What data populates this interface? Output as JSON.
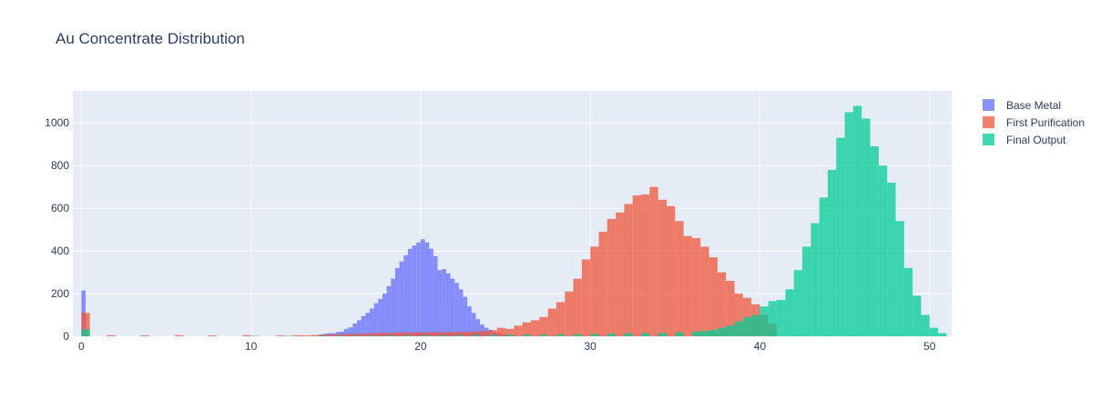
{
  "chart_data": {
    "type": "bar",
    "title": "Au Concentrate Distribution",
    "xlabel": "",
    "ylabel": "",
    "xlim": [
      -0.5,
      51.3
    ],
    "ylim": [
      0,
      1150
    ],
    "x_ticks": [
      0,
      10,
      20,
      30,
      40,
      50
    ],
    "y_ticks": [
      0,
      200,
      400,
      600,
      800,
      1000
    ],
    "grid": true,
    "legend_position": "top-right",
    "barmode": "overlay",
    "series": [
      {
        "name": "Base Metal",
        "color": "#636efa",
        "opacity": 0.75,
        "bin_width": 0.25,
        "x": [
          0,
          14,
          14.25,
          14.5,
          14.75,
          15,
          15.25,
          15.5,
          15.75,
          16,
          16.25,
          16.5,
          16.75,
          17,
          17.25,
          17.5,
          17.75,
          18,
          18.25,
          18.5,
          18.75,
          19,
          19.25,
          19.5,
          19.75,
          20,
          20.25,
          20.5,
          20.75,
          21,
          21.25,
          21.5,
          21.75,
          22,
          22.25,
          22.5,
          22.75,
          23,
          23.25,
          23.5,
          23.75,
          24,
          24.25,
          24.5,
          24.75,
          25,
          25.25,
          25.5
        ],
        "y": [
          215,
          8,
          12,
          15,
          14,
          20,
          22,
          35,
          42,
          60,
          75,
          95,
          110,
          130,
          155,
          175,
          200,
          235,
          270,
          320,
          350,
          380,
          410,
          425,
          440,
          455,
          440,
          410,
          375,
          310,
          315,
          295,
          270,
          250,
          220,
          185,
          140,
          110,
          80,
          55,
          40,
          30,
          20,
          15,
          10,
          6,
          4,
          3
        ]
      },
      {
        "name": "First Purification",
        "color": "#ef553b",
        "opacity": 0.75,
        "bin_width": 0.5,
        "x": [
          0,
          1.5,
          3.5,
          5.5,
          7.5,
          9.5,
          11.5,
          12.5,
          13,
          13.5,
          14,
          14.5,
          15,
          15.5,
          16,
          16.5,
          17,
          17.5,
          18,
          18.5,
          19,
          19.5,
          20,
          20.5,
          21,
          21.5,
          22,
          22.5,
          23,
          23.5,
          24,
          24.5,
          25,
          25.5,
          26,
          26.5,
          27,
          27.5,
          28,
          28.5,
          29,
          29.5,
          30,
          30.5,
          31,
          31.5,
          32,
          32.5,
          33,
          33.5,
          34,
          34.5,
          35,
          35.5,
          36,
          36.5,
          37,
          37.5,
          38,
          38.5,
          39,
          39.5,
          40,
          40.5
        ],
        "y": [
          110,
          5,
          4,
          5,
          4,
          5,
          4,
          5,
          4,
          6,
          8,
          8,
          10,
          10,
          12,
          12,
          15,
          15,
          16,
          18,
          17,
          18,
          18,
          18,
          20,
          18,
          20,
          20,
          22,
          25,
          28,
          40,
          35,
          50,
          65,
          75,
          90,
          130,
          160,
          210,
          270,
          360,
          420,
          490,
          550,
          580,
          620,
          660,
          665,
          700,
          640,
          610,
          540,
          470,
          460,
          420,
          370,
          300,
          260,
          200,
          180,
          150,
          100,
          60
        ]
      },
      {
        "name": "Final Output",
        "color": "#00cc96",
        "opacity": 0.75,
        "bin_width": 0.5,
        "x": [
          0,
          10,
          12,
          14,
          15,
          16,
          17,
          18,
          19,
          20,
          21,
          22,
          23,
          24,
          25,
          26,
          27,
          28,
          29,
          30,
          31,
          32,
          33,
          34,
          35,
          36,
          36.5,
          37,
          37.5,
          38,
          38.5,
          39,
          39.5,
          40,
          40.5,
          41,
          41.5,
          42,
          42.5,
          43,
          43.5,
          44,
          44.5,
          45,
          45.5,
          46,
          46.5,
          47,
          47.5,
          48,
          48.5,
          49,
          49.5,
          50,
          50.5
        ],
        "y": [
          32,
          2,
          2,
          3,
          3,
          3,
          3,
          4,
          4,
          5,
          5,
          5,
          6,
          6,
          7,
          8,
          8,
          9,
          10,
          10,
          12,
          14,
          15,
          16,
          18,
          22,
          25,
          30,
          40,
          50,
          70,
          90,
          100,
          140,
          165,
          170,
          220,
          310,
          420,
          530,
          650,
          780,
          930,
          1050,
          1080,
          1020,
          890,
          800,
          720,
          540,
          320,
          190,
          100,
          40,
          15
        ]
      }
    ]
  },
  "legend": {
    "items": [
      {
        "label": "Base Metal",
        "color": "#636efa"
      },
      {
        "label": "First Purification",
        "color": "#ef553b"
      },
      {
        "label": "Final Output",
        "color": "#00cc96"
      }
    ]
  },
  "colors": {
    "plot_background": "#e5ecf6",
    "grid": "#ffffff",
    "text": "#2a3f5f"
  }
}
